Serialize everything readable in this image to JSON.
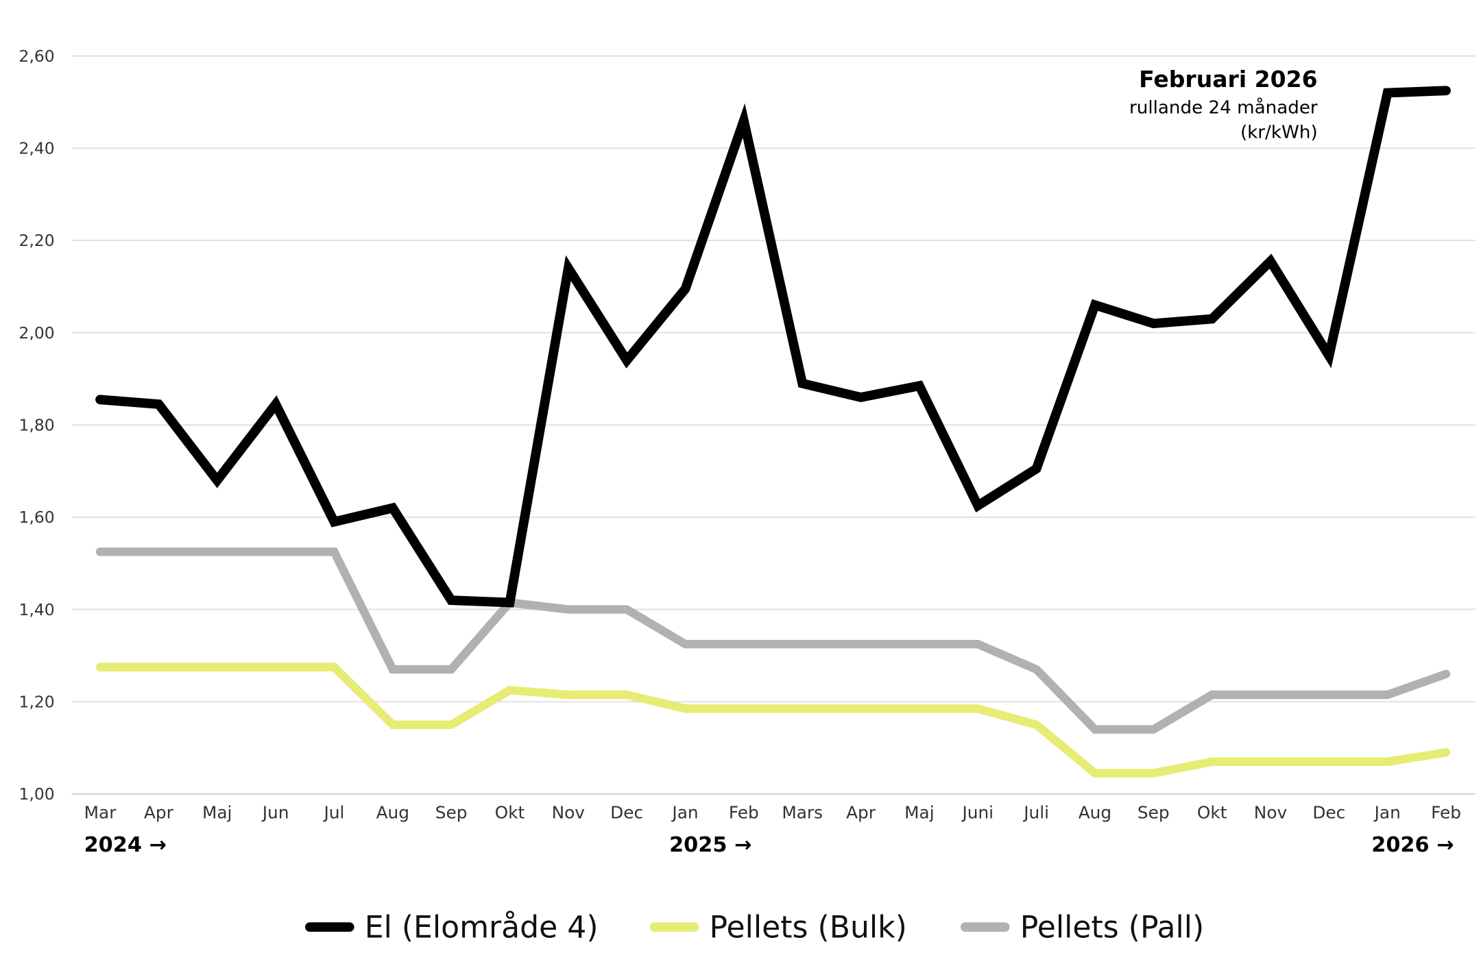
{
  "chart_data": {
    "type": "line",
    "annotation": {
      "title": "Februari 2026",
      "subtitle": "rullande 24 månader",
      "unit": "(kr/kWh)"
    },
    "categories": [
      "Mar",
      "Apr",
      "Maj",
      "Jun",
      "Jul",
      "Aug",
      "Sep",
      "Okt",
      "Nov",
      "Dec",
      "Jan",
      "Feb",
      "Mars",
      "Apr",
      "Maj",
      "Juni",
      "Juli",
      "Aug",
      "Sep",
      "Okt",
      "Nov",
      "Dec",
      "Jan",
      "Feb"
    ],
    "year_labels": [
      {
        "label": "2024 →",
        "at_index": 0
      },
      {
        "label": "2025 →",
        "at_index": 10
      },
      {
        "label": "2026 →",
        "at_index": 22
      }
    ],
    "ylim": [
      1.0,
      2.6
    ],
    "yticks": [
      1.0,
      1.2,
      1.4,
      1.6,
      1.8,
      2.0,
      2.2,
      2.4,
      2.6
    ],
    "ytick_labels": [
      "1,00",
      "1,20",
      "1,40",
      "1,60",
      "1,80",
      "2,00",
      "2,20",
      "2,40",
      "2,60"
    ],
    "grid": true,
    "legend_position": "bottom",
    "series": [
      {
        "name": "El (Elområde 4)",
        "color": "#000000",
        "values": [
          1.855,
          1.845,
          1.68,
          1.845,
          1.59,
          1.62,
          1.42,
          1.415,
          2.14,
          1.94,
          2.095,
          2.46,
          1.89,
          1.86,
          1.885,
          1.625,
          1.705,
          2.06,
          2.02,
          2.03,
          2.155,
          1.95,
          2.52,
          2.525
        ]
      },
      {
        "name": "Pellets (Bulk)",
        "color": "#e6ec74",
        "values": [
          1.275,
          1.275,
          1.275,
          1.275,
          1.275,
          1.15,
          1.15,
          1.225,
          1.215,
          1.215,
          1.185,
          1.185,
          1.185,
          1.185,
          1.185,
          1.185,
          1.15,
          1.045,
          1.045,
          1.07,
          1.07,
          1.07,
          1.07,
          1.09
        ]
      },
      {
        "name": "Pellets (Pall)",
        "color": "#b3b0b0",
        "values": [
          1.525,
          1.525,
          1.525,
          1.525,
          1.525,
          1.27,
          1.27,
          1.415,
          1.4,
          1.4,
          1.325,
          1.325,
          1.325,
          1.325,
          1.325,
          1.325,
          1.27,
          1.14,
          1.14,
          1.215,
          1.215,
          1.215,
          1.215,
          1.26
        ]
      }
    ]
  }
}
